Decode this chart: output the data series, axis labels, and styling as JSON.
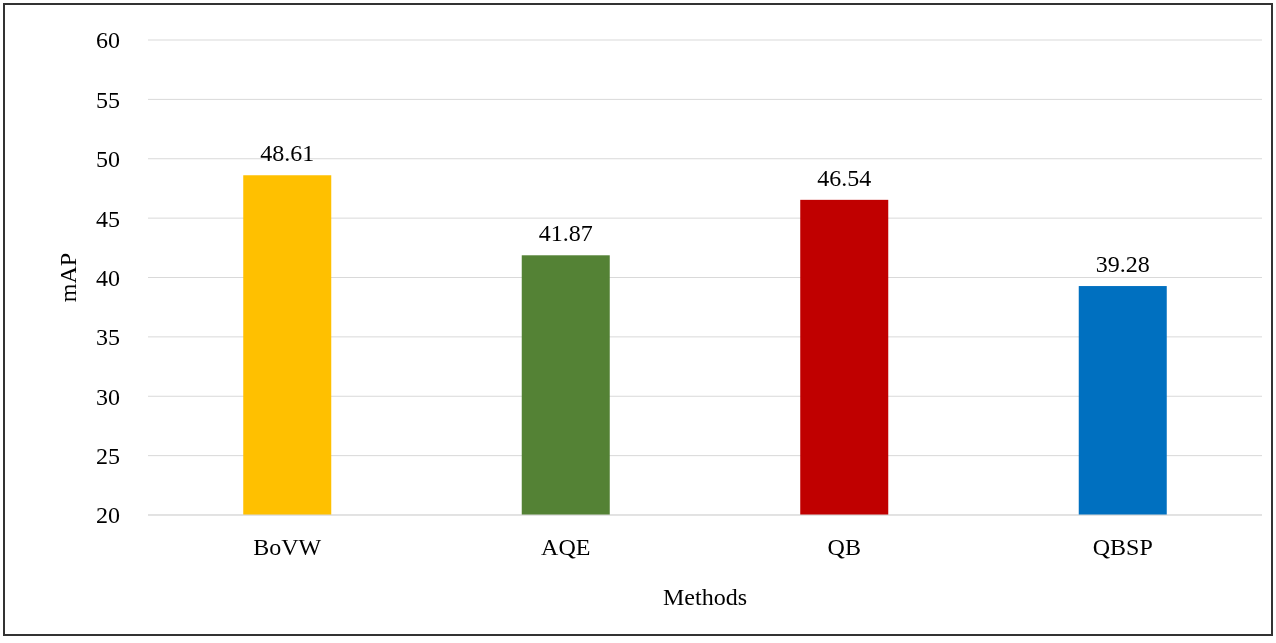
{
  "chart_data": {
    "type": "bar",
    "xlabel": "Methods",
    "ylabel": "mAP",
    "categories": [
      "BoVW",
      "AQE",
      "QB",
      "QBSP"
    ],
    "values": [
      48.61,
      41.87,
      46.54,
      39.28
    ],
    "colors": [
      "#ffc000",
      "#548235",
      "#c00000",
      "#0070c0"
    ],
    "ylim": [
      20,
      60
    ],
    "yticks": [
      20,
      25,
      30,
      35,
      40,
      45,
      50,
      55,
      60
    ],
    "grid": "y",
    "data_labels": true
  }
}
